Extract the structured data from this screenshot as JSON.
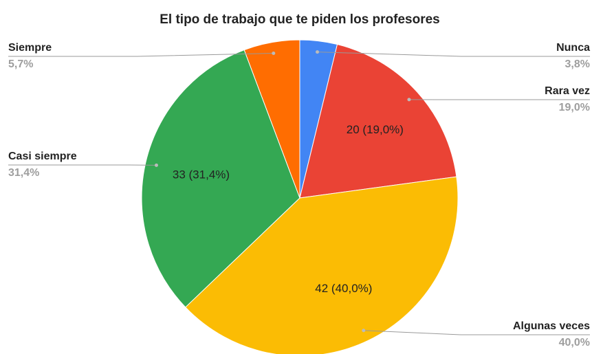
{
  "chart_data": {
    "type": "pie",
    "title": "El tipo de trabajo que te piden los profesores",
    "categories": [
      "Nunca",
      "Rara vez",
      "Algunas veces",
      "Casi siempre",
      "Siempre"
    ],
    "values": [
      4,
      20,
      42,
      33,
      6
    ],
    "value_labels": [
      null,
      "20 (19,0%)",
      "42 (40,0%)",
      "33 (31,4%)",
      null
    ],
    "shares": [
      3.8,
      19.0,
      40.0,
      31.4,
      5.7
    ],
    "share_labels": [
      "3,8%",
      "19,0%",
      "40,0%",
      "31,4%",
      "5,7%"
    ],
    "colors": [
      "#4285f4",
      "#ea4335",
      "#fbbc04",
      "#34a853",
      "#ff6d01"
    ]
  }
}
